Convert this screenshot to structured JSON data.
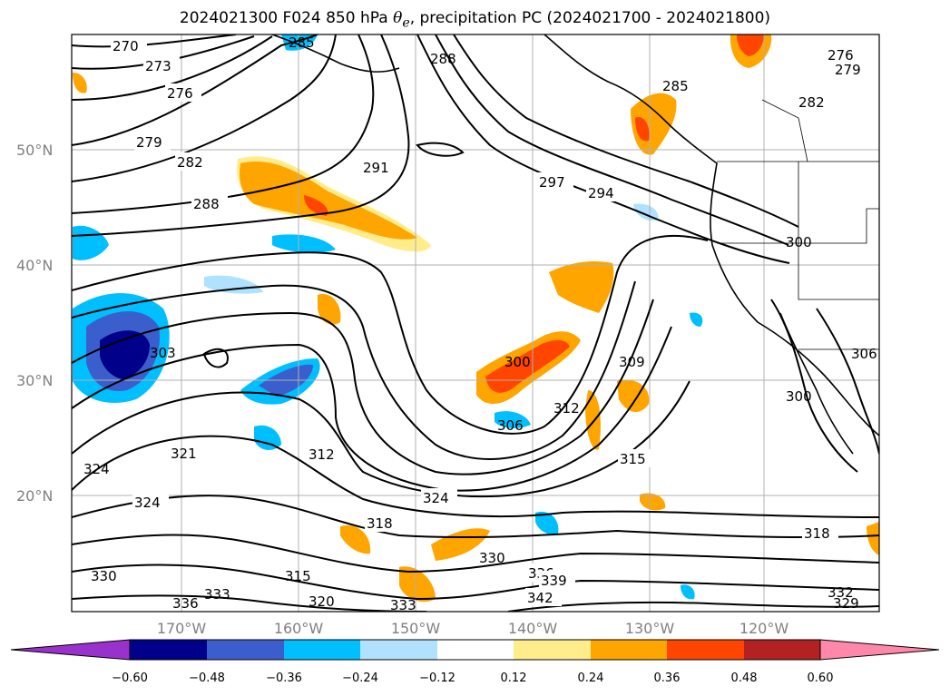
{
  "title": {
    "prefix": "2024021300 F024 850 hPa ",
    "theta_symbol": "θ",
    "theta_subscript": "e",
    "suffix": ", precipitation PC (2024021700 - 2024021800)"
  },
  "map": {
    "region": "North-East Pacific",
    "lat_labels": [
      "50°N",
      "40°N",
      "30°N",
      "20°N"
    ],
    "lon_labels": [
      "170°W",
      "160°W",
      "150°W",
      "140°W",
      "130°W",
      "120°W"
    ],
    "contour_labels": [
      "270",
      "273",
      "276",
      "279",
      "282",
      "288",
      "285",
      "291",
      "288",
      "285",
      "297",
      "294",
      "276",
      "279",
      "282",
      "300",
      "303",
      "300",
      "309",
      "312",
      "306",
      "315",
      "300",
      "306",
      "321",
      "324",
      "324",
      "312",
      "324",
      "318",
      "318",
      "330",
      "336",
      "339",
      "342",
      "315",
      "330",
      "333",
      "336",
      "339",
      "320",
      "333",
      "332",
      "329"
    ]
  },
  "colorbar": {
    "colors": [
      "#9932CC",
      "#00008B",
      "#3A5FCD",
      "#00BFFF",
      "#B0E2FF",
      "#FFFFFF",
      "#FFEC8B",
      "#FFA500",
      "#FF4500",
      "#B22222",
      "#FF88AA"
    ],
    "tick_labels": [
      "−0.60",
      "−0.48",
      "−0.36",
      "−0.24",
      "−0.12",
      "0.12",
      "0.24",
      "0.36",
      "0.48",
      "0.60"
    ]
  }
}
